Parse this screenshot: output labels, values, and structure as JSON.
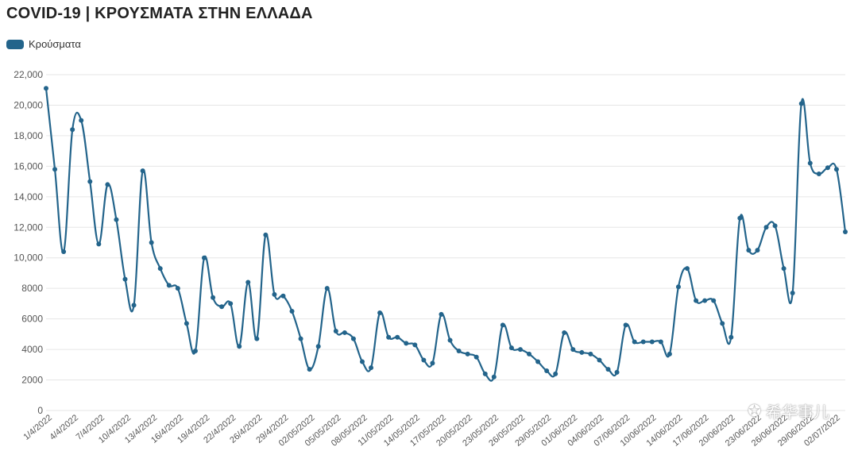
{
  "title": "COVID-19 | ΚΡΟΥΣΜΑΤΑ ΣΤΗΝ ΕΛΛΑΔΑ",
  "watermark": "希华事儿",
  "colors": {
    "line": "#23648b",
    "grid": "#e6e6e6",
    "text": "#555555"
  },
  "chart_data": {
    "type": "line",
    "title": "COVID-19 | ΚΡΟΥΣΜΑΤΑ ΣΤΗΝ ΕΛΛΑΔΑ",
    "legend_position": "top-left",
    "grid": true,
    "ylim": [
      0,
      22000
    ],
    "y_ticks": [
      "0",
      "2000",
      "4000",
      "6000",
      "8000",
      "10,000",
      "12,000",
      "14,000",
      "16,000",
      "18,000",
      "20,000",
      "22,000"
    ],
    "x_tick_labels": [
      "1/4/2022",
      "4/4/2022",
      "7/4/2022",
      "10/4/2022",
      "13/4/2022",
      "16/4/2022",
      "19/4/2022",
      "22/4/2022",
      "26/4/2022",
      "29/4/2022",
      "02/05/2022",
      "05/05/2022",
      "08/05/2022",
      "11/05/2022",
      "14/05/2022",
      "17/05/2022",
      "20/05/2022",
      "23/05/2022",
      "26/05/2022",
      "29/05/2022",
      "01/06/2022",
      "04/06/2022",
      "07/06/2022",
      "10/06/2022",
      "14/06/2022",
      "17/06/2022",
      "20/06/2022",
      "23/06/2022",
      "26/06/2022",
      "29/06/2022",
      "02/07/2022"
    ],
    "series": [
      {
        "name": "Κρούσματα",
        "color": "#23648b",
        "values": [
          21100,
          15800,
          10400,
          18400,
          19000,
          15000,
          10900,
          14800,
          12500,
          8600,
          6900,
          15700,
          11000,
          9300,
          8200,
          8000,
          5700,
          3900,
          10000,
          7400,
          6800,
          7000,
          4200,
          8400,
          4700,
          11500,
          7600,
          7500,
          6500,
          4700,
          2700,
          4200,
          8000,
          5200,
          5100,
          4700,
          3200,
          2800,
          6400,
          4800,
          4800,
          4400,
          4300,
          3300,
          3100,
          6300,
          4600,
          3900,
          3700,
          3500,
          2400,
          2200,
          5600,
          4100,
          4000,
          3700,
          3200,
          2600,
          2400,
          5100,
          4000,
          3800,
          3700,
          3300,
          2700,
          2500,
          5600,
          4500,
          4500,
          4500,
          4500,
          3700,
          8100,
          9300,
          7200,
          7200,
          7200,
          5700,
          4800,
          12600,
          10500,
          10500,
          12000,
          12100,
          9300,
          7700,
          20100,
          16200,
          15500,
          15900,
          15800,
          11700
        ]
      }
    ]
  }
}
